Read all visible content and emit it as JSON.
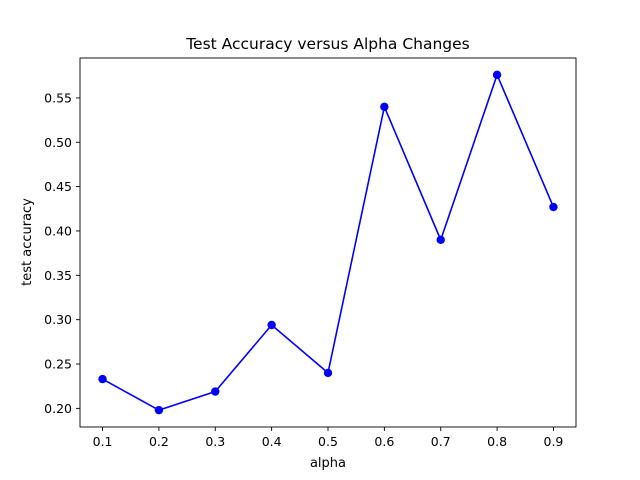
{
  "chart_data": {
    "type": "line",
    "title": "Test Accuracy versus Alpha Changes",
    "xlabel": "alpha",
    "ylabel": "test accuracy",
    "x": [
      0.1,
      0.2,
      0.3,
      0.4,
      0.5,
      0.6,
      0.7,
      0.8,
      0.9
    ],
    "series": [
      {
        "values": [
          0.233,
          0.198,
          0.219,
          0.294,
          0.24,
          0.54,
          0.39,
          0.576,
          0.427
        ],
        "color": "#0000ff",
        "marker": "circle"
      }
    ],
    "xticks": [
      "0.1",
      "0.2",
      "0.3",
      "0.4",
      "0.5",
      "0.6",
      "0.7",
      "0.8",
      "0.9"
    ],
    "yticks": [
      "0.20",
      "0.25",
      "0.30",
      "0.35",
      "0.40",
      "0.45",
      "0.50",
      "0.55"
    ],
    "xlim": [
      0.06,
      0.94
    ],
    "ylim": [
      0.179,
      0.595
    ],
    "grid": false,
    "legend": false
  }
}
